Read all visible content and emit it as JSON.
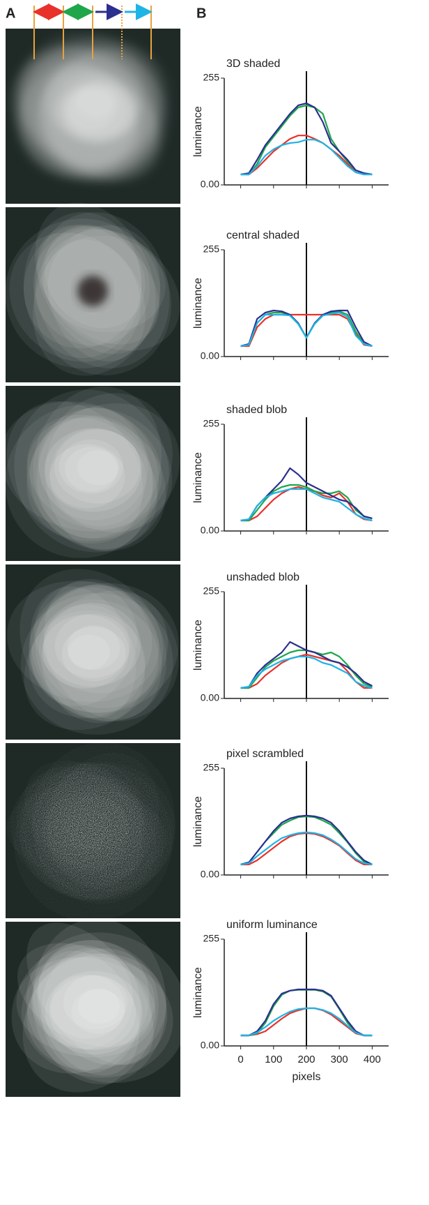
{
  "panel_labels": [
    "A",
    "B"
  ],
  "chart_data": [
    {
      "type": "line",
      "title": "3D shaded",
      "ylabel": "luminance",
      "x": [
        0,
        25,
        50,
        75,
        100,
        125,
        150,
        175,
        200,
        225,
        250,
        275,
        300,
        325,
        350,
        375,
        400
      ],
      "xlim": [
        -50,
        450
      ],
      "xticks": [
        0,
        100,
        200,
        300,
        400
      ],
      "show_xtick_labels": false,
      "ylim": [
        0,
        255
      ],
      "yticks": [
        {
          "value": 0,
          "label": "0.00"
        },
        255
      ],
      "vline": 200,
      "series": [
        {
          "color": "#e8312a",
          "values": [
            25,
            25,
            40,
            60,
            80,
            95,
            110,
            118,
            118,
            110,
            100,
            85,
            70,
            50,
            30,
            25,
            25
          ]
        },
        {
          "color": "#1fa64a",
          "values": [
            25,
            25,
            50,
            90,
            115,
            140,
            165,
            185,
            190,
            185,
            170,
            110,
            80,
            55,
            35,
            28,
            25
          ]
        },
        {
          "color": "#2b2f8f",
          "values": [
            25,
            28,
            60,
            95,
            120,
            145,
            170,
            190,
            195,
            185,
            150,
            100,
            80,
            60,
            35,
            28,
            25
          ]
        },
        {
          "color": "#1eb4e6",
          "values": [
            25,
            25,
            45,
            70,
            85,
            95,
            100,
            102,
            108,
            108,
            100,
            85,
            65,
            45,
            30,
            25,
            25
          ]
        }
      ]
    },
    {
      "type": "line",
      "title": "central shaded",
      "ylabel": "luminance",
      "x": [
        0,
        25,
        50,
        75,
        100,
        125,
        150,
        175,
        200,
        225,
        250,
        275,
        300,
        325,
        350,
        375,
        400
      ],
      "xlim": [
        -50,
        450
      ],
      "xticks": [
        0,
        100,
        200,
        300,
        400
      ],
      "show_xtick_labels": false,
      "ylim": [
        0,
        255
      ],
      "yticks": [
        {
          "value": 0,
          "label": "0.00"
        },
        255
      ],
      "vline": 200,
      "series": [
        {
          "color": "#e8312a",
          "values": [
            25,
            25,
            70,
            90,
            100,
            100,
            100,
            100,
            100,
            100,
            100,
            100,
            100,
            90,
            55,
            28,
            25
          ]
        },
        {
          "color": "#1fa64a",
          "values": [
            25,
            28,
            80,
            100,
            105,
            105,
            98,
            78,
            45,
            78,
            98,
            105,
            108,
            100,
            60,
            30,
            25
          ]
        },
        {
          "color": "#2b2f8f",
          "values": [
            25,
            30,
            90,
            105,
            110,
            108,
            100,
            80,
            45,
            80,
            100,
            108,
            110,
            110,
            70,
            35,
            25
          ]
        },
        {
          "color": "#1eb4e6",
          "values": [
            25,
            28,
            80,
            100,
            100,
            100,
            98,
            78,
            45,
            78,
            98,
            102,
            105,
            95,
            50,
            30,
            25
          ]
        }
      ]
    },
    {
      "type": "line",
      "title": "shaded blob",
      "ylabel": "luminance",
      "x": [
        0,
        25,
        50,
        75,
        100,
        125,
        150,
        175,
        200,
        225,
        250,
        275,
        300,
        325,
        350,
        375,
        400
      ],
      "xlim": [
        -50,
        450
      ],
      "xticks": [
        0,
        100,
        200,
        300,
        400
      ],
      "show_xtick_labels": false,
      "ylim": [
        0,
        255
      ],
      "yticks": [
        {
          "value": 0,
          "label": "0.00"
        },
        255
      ],
      "vline": 200,
      "series": [
        {
          "color": "#e8312a",
          "values": [
            25,
            25,
            35,
            55,
            75,
            90,
            100,
            105,
            100,
            95,
            85,
            80,
            90,
            70,
            40,
            28,
            25
          ]
        },
        {
          "color": "#1fa64a",
          "values": [
            25,
            25,
            50,
            75,
            95,
            105,
            110,
            110,
            105,
            95,
            90,
            90,
            95,
            80,
            50,
            35,
            30
          ]
        },
        {
          "color": "#2b2f8f",
          "values": [
            25,
            28,
            60,
            80,
            100,
            120,
            150,
            135,
            115,
            105,
            95,
            85,
            75,
            70,
            55,
            35,
            30
          ]
        },
        {
          "color": "#1eb4e6",
          "values": [
            25,
            28,
            60,
            80,
            90,
            95,
            100,
            100,
            100,
            90,
            80,
            75,
            70,
            55,
            40,
            30,
            25
          ]
        }
      ]
    },
    {
      "type": "line",
      "title": "unshaded blob",
      "ylabel": "luminance",
      "x": [
        0,
        25,
        50,
        75,
        100,
        125,
        150,
        175,
        200,
        225,
        250,
        275,
        300,
        325,
        350,
        375,
        400
      ],
      "xlim": [
        -50,
        450
      ],
      "xticks": [
        0,
        100,
        200,
        300,
        400
      ],
      "show_xtick_labels": false,
      "ylim": [
        0,
        255
      ],
      "yticks": [
        {
          "value": 0,
          "label": "0.00"
        },
        255
      ],
      "vline": 200,
      "series": [
        {
          "color": "#e8312a",
          "values": [
            25,
            25,
            35,
            55,
            70,
            85,
            95,
            100,
            105,
            100,
            95,
            90,
            85,
            65,
            40,
            25,
            25
          ]
        },
        {
          "color": "#1fa64a",
          "values": [
            25,
            25,
            50,
            75,
            90,
            100,
            110,
            115,
            115,
            110,
            105,
            110,
            100,
            80,
            55,
            35,
            28
          ]
        },
        {
          "color": "#2b2f8f",
          "values": [
            25,
            28,
            60,
            80,
            95,
            110,
            135,
            125,
            115,
            110,
            100,
            90,
            85,
            75,
            60,
            40,
            30
          ]
        },
        {
          "color": "#1eb4e6",
          "values": [
            25,
            28,
            55,
            70,
            80,
            90,
            95,
            100,
            100,
            95,
            85,
            80,
            70,
            60,
            40,
            30,
            25
          ]
        }
      ]
    },
    {
      "type": "line",
      "title": "pixel scrambled",
      "ylabel": "luminance",
      "x": [
        0,
        25,
        50,
        75,
        100,
        125,
        150,
        175,
        200,
        225,
        250,
        275,
        300,
        325,
        350,
        375,
        400
      ],
      "xlim": [
        -50,
        450
      ],
      "xticks": [
        0,
        100,
        200,
        300,
        400
      ],
      "show_xtick_labels": false,
      "ylim": [
        0,
        255
      ],
      "yticks": [
        {
          "value": 0,
          "label": "0.00"
        },
        255
      ],
      "vline": 200,
      "series": [
        {
          "color": "#e8312a",
          "values": [
            25,
            25,
            35,
            50,
            65,
            80,
            92,
            98,
            100,
            98,
            92,
            82,
            70,
            52,
            35,
            25,
            25
          ]
        },
        {
          "color": "#1fa64a",
          "values": [
            25,
            30,
            55,
            80,
            100,
            120,
            130,
            138,
            140,
            138,
            130,
            120,
            100,
            78,
            52,
            32,
            25
          ]
        },
        {
          "color": "#2b2f8f",
          "values": [
            25,
            30,
            55,
            80,
            105,
            125,
            135,
            140,
            142,
            140,
            135,
            125,
            105,
            80,
            55,
            35,
            25
          ]
        },
        {
          "color": "#1eb4e6",
          "values": [
            25,
            28,
            45,
            60,
            75,
            88,
            95,
            100,
            102,
            100,
            95,
            85,
            72,
            55,
            38,
            28,
            25
          ]
        }
      ]
    },
    {
      "type": "line",
      "title": "uniform luminance",
      "ylabel": "luminance",
      "xlabel": "pixels",
      "x": [
        0,
        25,
        50,
        75,
        100,
        125,
        150,
        175,
        200,
        225,
        250,
        275,
        300,
        325,
        350,
        375,
        400
      ],
      "xlim": [
        -50,
        450
      ],
      "xticks": [
        0,
        100,
        200,
        300,
        400
      ],
      "show_xtick_labels": true,
      "ylim": [
        0,
        255
      ],
      "yticks": [
        {
          "value": 0,
          "label": "0.00"
        },
        255
      ],
      "vline": 200,
      "series": [
        {
          "color": "#e8312a",
          "values": [
            25,
            25,
            28,
            35,
            50,
            65,
            78,
            85,
            90,
            90,
            85,
            75,
            60,
            45,
            30,
            25,
            25
          ]
        },
        {
          "color": "#1fa64a",
          "values": [
            25,
            25,
            30,
            55,
            95,
            122,
            132,
            134,
            134,
            134,
            130,
            118,
            88,
            55,
            32,
            25,
            25
          ]
        },
        {
          "color": "#2b2f8f",
          "values": [
            25,
            25,
            35,
            60,
            100,
            125,
            132,
            135,
            135,
            135,
            132,
            120,
            90,
            60,
            35,
            25,
            25
          ]
        },
        {
          "color": "#1eb4e6",
          "values": [
            25,
            25,
            32,
            45,
            60,
            72,
            82,
            88,
            90,
            90,
            86,
            78,
            65,
            48,
            32,
            25,
            25
          ]
        }
      ]
    }
  ]
}
